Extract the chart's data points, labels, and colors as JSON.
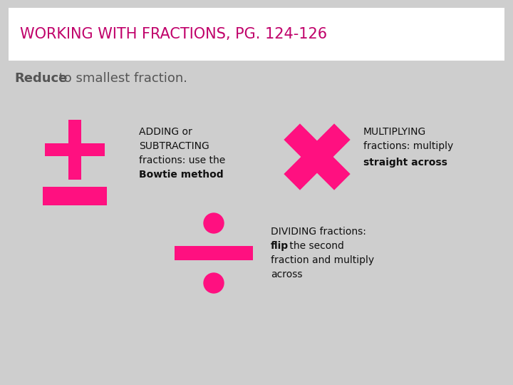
{
  "title": "WORKING WITH FRACTIONS, PG. 124-126",
  "title_color": "#C0006A",
  "title_fontsize": 15,
  "reduce_bold": "Reduce",
  "reduce_rest": " to smallest fraction.",
  "reduce_fontsize": 13,
  "reduce_color": "#555555",
  "adding_line1": "ADDING or",
  "adding_line2": "SUBTRACTING",
  "adding_line3": "fractions: use the",
  "adding_line4_bold": "Bowtie method",
  "multiplying_line1": "MULTIPLYING",
  "multiplying_line2": "fractions: multiply",
  "multiplying_line3_bold": "straight across",
  "dividing_line1": "DIVIDING fractions:",
  "dividing_line2a_bold": "flip",
  "dividing_line2b": " the second",
  "dividing_line3": "fraction and multiply",
  "dividing_line4": "across",
  "pink_color": "#FF1080",
  "bg_color": "#CECECE",
  "header_bg": "#FFFFFF",
  "text_color": "#111111",
  "text_fontsize": 10
}
